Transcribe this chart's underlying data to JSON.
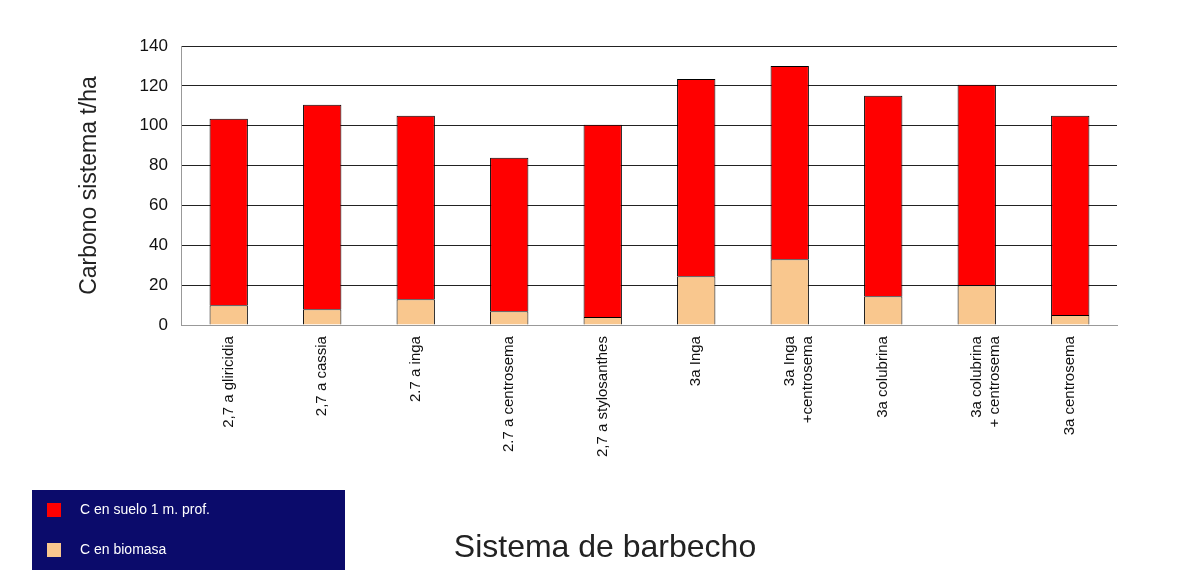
{
  "chart_data": {
    "type": "bar",
    "xlabel": "Sistema de barbecho",
    "ylabel": "Carbono sistema t/ha",
    "categories": [
      "2,7 a gliricidia",
      "2,7 a cassia",
      "2.7 a inga",
      "2.7 a centrosema",
      "2,7 a stylosanthes",
      "3a Inga",
      "3a Inga\n+centrosema",
      "3a colubrina",
      "3a colubrina\n+ centrosema",
      "3a centrosema"
    ],
    "series": [
      {
        "name": "C en biomasa",
        "color": "#f9c78e",
        "values": [
          10,
          8,
          13,
          7,
          4,
          24.5,
          33,
          14.5,
          20,
          5
        ]
      },
      {
        "name": "C en suelo 1 m. prof.",
        "color": "#ff0000",
        "values": [
          93.5,
          102.5,
          92,
          77,
          96.5,
          99,
          97,
          100.5,
          100.5,
          100
        ]
      }
    ],
    "stacked": true,
    "ylim": [
      0,
      140
    ],
    "yticks": [
      0,
      20,
      40,
      60,
      80,
      100,
      120,
      140
    ],
    "grid": "y",
    "legend": "bottom left"
  }
}
